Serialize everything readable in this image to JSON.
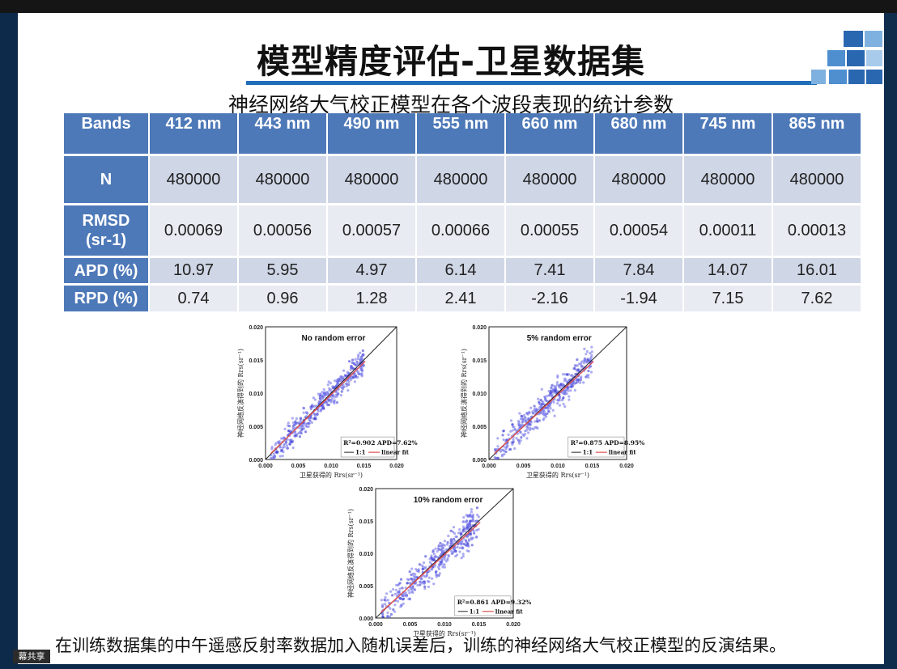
{
  "slide": {
    "title": "模型精度评估-卫星数据集",
    "subtitle": "神经网络大气校正模型在各个波段表现的统计参数",
    "caption": "在训练数据集的中午遥感反射率数据加入随机误差后，训练的神经网络大气校正模型的反演结果。"
  },
  "table": {
    "corner": "Bands",
    "bands": [
      "412 nm",
      "443 nm",
      "490 nm",
      "555 nm",
      "660 nm",
      "680 nm",
      "745 nm",
      "865 nm"
    ],
    "rows": [
      {
        "label": "N",
        "values": [
          "480000",
          "480000",
          "480000",
          "480000",
          "480000",
          "480000",
          "480000",
          "480000"
        ]
      },
      {
        "label": "RMSD",
        "values": [
          "0.00069",
          "0.00056",
          "0.00057",
          "0.00066",
          "0.00055",
          "0.00054",
          "0.00011",
          "0.00013"
        ]
      },
      {
        "label": "APD (%)",
        "values": [
          "10.97",
          "5.95",
          "4.97",
          "6.14",
          "7.41",
          "7.84",
          "14.07",
          "16.01"
        ]
      },
      {
        "label": "RPD (%)",
        "values": [
          "0.74",
          "0.96",
          "1.28",
          "2.41",
          "-2.16",
          "-1.94",
          "7.15",
          "7.62"
        ]
      }
    ],
    "rmsd_unit": "(sr-1)"
  },
  "plots": [
    {
      "title": "No random error",
      "stats": "R²=0.902 APD=7.62%"
    },
    {
      "title": "5% random error",
      "stats": "R²=0.875 APD=8.95%"
    },
    {
      "title": "10% random error",
      "stats": "R²=0.861 APD=9.32%"
    }
  ],
  "axes": {
    "xlabel": "卫星获得的 Rrs(sr⁻¹)",
    "ylabel": "神经网络反演得到的 Rrs(sr⁻¹)",
    "ticks": [
      "0.000",
      "0.005",
      "0.010",
      "0.015",
      "0.020"
    ],
    "legend_line": "1:1",
    "legend_fit": "linear fit"
  },
  "status": {
    "share_label": "幕共享"
  },
  "colors": {
    "header_blue": "#4e79b8",
    "row_a": "#cfd6e6",
    "row_b": "#e8ebf2",
    "accent": "#1f6fb8"
  }
}
